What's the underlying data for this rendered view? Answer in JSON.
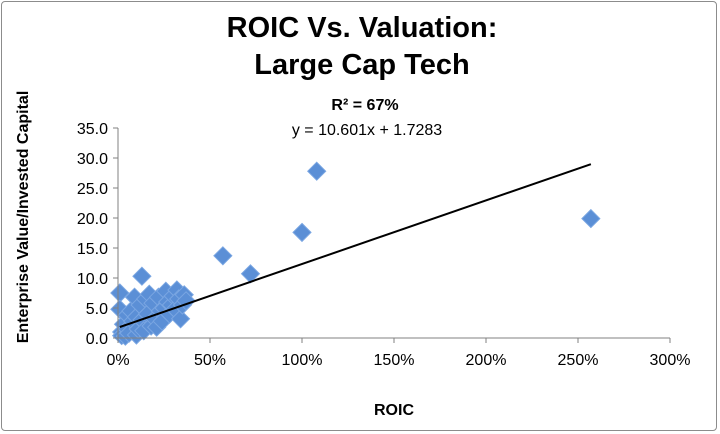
{
  "chart_data": {
    "type": "scatter",
    "title": [
      "ROIC Vs. Valuation:",
      "Large Cap Tech"
    ],
    "xlabel": "ROIC",
    "ylabel": "Enterprise Value/Invested Capital",
    "xlim": [
      0,
      3.0
    ],
    "ylim": [
      0,
      35
    ],
    "x_ticks": [
      0,
      0.5,
      1.0,
      1.5,
      2.0,
      2.5,
      3.0
    ],
    "x_tick_labels": [
      "0%",
      "50%",
      "100%",
      "150%",
      "200%",
      "250%",
      "300%"
    ],
    "y_ticks": [
      0,
      5,
      10,
      15,
      20,
      25,
      30,
      35
    ],
    "y_tick_labels": [
      "0.0",
      "5.0",
      "10.0",
      "15.0",
      "20.0",
      "25.0",
      "30.0",
      "35.0"
    ],
    "grid": false,
    "marker_color": "#5b8fd6",
    "trendline": {
      "type": "linear",
      "slope": 10.601,
      "intercept": 1.7283,
      "x_range": [
        0.01,
        2.57
      ],
      "equation_label": "y = 10.601x + 1.7283",
      "r_squared_label": "R² = 67%"
    },
    "points": [
      {
        "x": 0.01,
        "y": 7.5
      },
      {
        "x": 0.01,
        "y": 4.8
      },
      {
        "x": 0.02,
        "y": 1.0
      },
      {
        "x": 0.02,
        "y": 0.4
      },
      {
        "x": 0.03,
        "y": 2.3
      },
      {
        "x": 0.04,
        "y": 0.3
      },
      {
        "x": 0.05,
        "y": 1.5
      },
      {
        "x": 0.05,
        "y": 3.8
      },
      {
        "x": 0.06,
        "y": 0.8
      },
      {
        "x": 0.07,
        "y": 4.5
      },
      {
        "x": 0.08,
        "y": 2.8
      },
      {
        "x": 0.09,
        "y": 6.8
      },
      {
        "x": 0.1,
        "y": 0.5
      },
      {
        "x": 0.1,
        "y": 3.5
      },
      {
        "x": 0.11,
        "y": 1.5
      },
      {
        "x": 0.12,
        "y": 5.5
      },
      {
        "x": 0.13,
        "y": 10.3
      },
      {
        "x": 0.13,
        "y": 3.0
      },
      {
        "x": 0.14,
        "y": 1.2
      },
      {
        "x": 0.15,
        "y": 6.5
      },
      {
        "x": 0.16,
        "y": 4.0
      },
      {
        "x": 0.17,
        "y": 7.3
      },
      {
        "x": 0.18,
        "y": 2.0
      },
      {
        "x": 0.19,
        "y": 5.8
      },
      {
        "x": 0.2,
        "y": 3.2
      },
      {
        "x": 0.21,
        "y": 1.8
      },
      {
        "x": 0.22,
        "y": 6.8
      },
      {
        "x": 0.23,
        "y": 4.5
      },
      {
        "x": 0.24,
        "y": 2.8
      },
      {
        "x": 0.25,
        "y": 5.0
      },
      {
        "x": 0.26,
        "y": 7.8
      },
      {
        "x": 0.27,
        "y": 6.0
      },
      {
        "x": 0.28,
        "y": 4.0
      },
      {
        "x": 0.29,
        "y": 5.5
      },
      {
        "x": 0.3,
        "y": 7.0
      },
      {
        "x": 0.31,
        "y": 4.8
      },
      {
        "x": 0.32,
        "y": 8.0
      },
      {
        "x": 0.33,
        "y": 6.5
      },
      {
        "x": 0.34,
        "y": 3.2
      },
      {
        "x": 0.35,
        "y": 5.5
      },
      {
        "x": 0.36,
        "y": 7.2
      },
      {
        "x": 0.37,
        "y": 6.2
      },
      {
        "x": 0.57,
        "y": 13.7
      },
      {
        "x": 0.72,
        "y": 10.7
      },
      {
        "x": 1.0,
        "y": 17.6
      },
      {
        "x": 1.08,
        "y": 27.8
      },
      {
        "x": 2.57,
        "y": 19.9
      }
    ]
  }
}
